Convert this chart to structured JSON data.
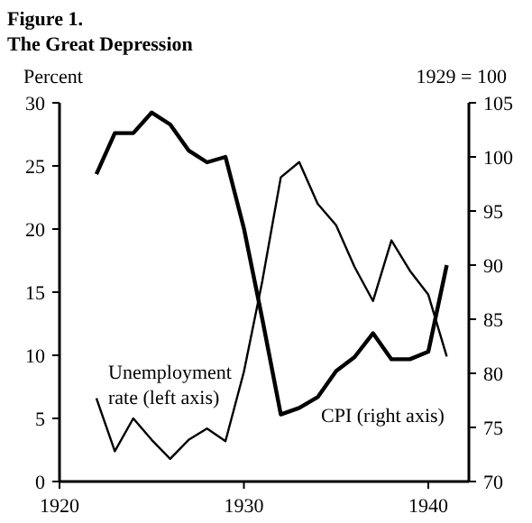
{
  "chart_data": {
    "type": "line",
    "title": "Figure 1.",
    "subtitle": "The Great Depression",
    "ylabel": "Percent",
    "y2label": "1929 = 100",
    "x": [
      1922,
      1923,
      1924,
      1925,
      1926,
      1927,
      1928,
      1929,
      1930,
      1931,
      1932,
      1933,
      1934,
      1935,
      1936,
      1937,
      1938,
      1939,
      1940,
      1941
    ],
    "series": [
      {
        "color": "#000000",
        "values": [
          6.6,
          2.4,
          5.0,
          3.3,
          1.8,
          3.3,
          4.2,
          3.2,
          8.7,
          15.9,
          24.1,
          25.3,
          22.0,
          20.3,
          17.0,
          14.3,
          19.1,
          16.7,
          14.8,
          9.9
        ]
      },
      {
        "color": "#000000",
        "axis": "y2",
        "values": [
          98.4,
          102.2,
          102.2,
          104.1,
          103.0,
          100.6,
          99.5,
          100.0,
          93.4,
          85.0,
          76.2,
          76.8,
          77.8,
          80.2,
          81.5,
          83.7,
          81.3,
          81.3,
          82.0,
          90.0
        ]
      }
    ],
    "xlim": [
      1920,
      1942.2
    ],
    "xticks": [
      1920,
      1930,
      1940
    ],
    "ylim": [
      0,
      30
    ],
    "yticks": [
      0,
      5,
      10,
      15,
      20,
      25,
      30
    ],
    "y2lim": [
      70,
      105
    ],
    "y2ticks": [
      70,
      75,
      80,
      85,
      90,
      95,
      100,
      105
    ],
    "annotations": [
      "Unemployment rate (left axis)",
      "CPI (right axis)"
    ],
    "grid": false,
    "line_style": "solid",
    "marker": "none"
  }
}
